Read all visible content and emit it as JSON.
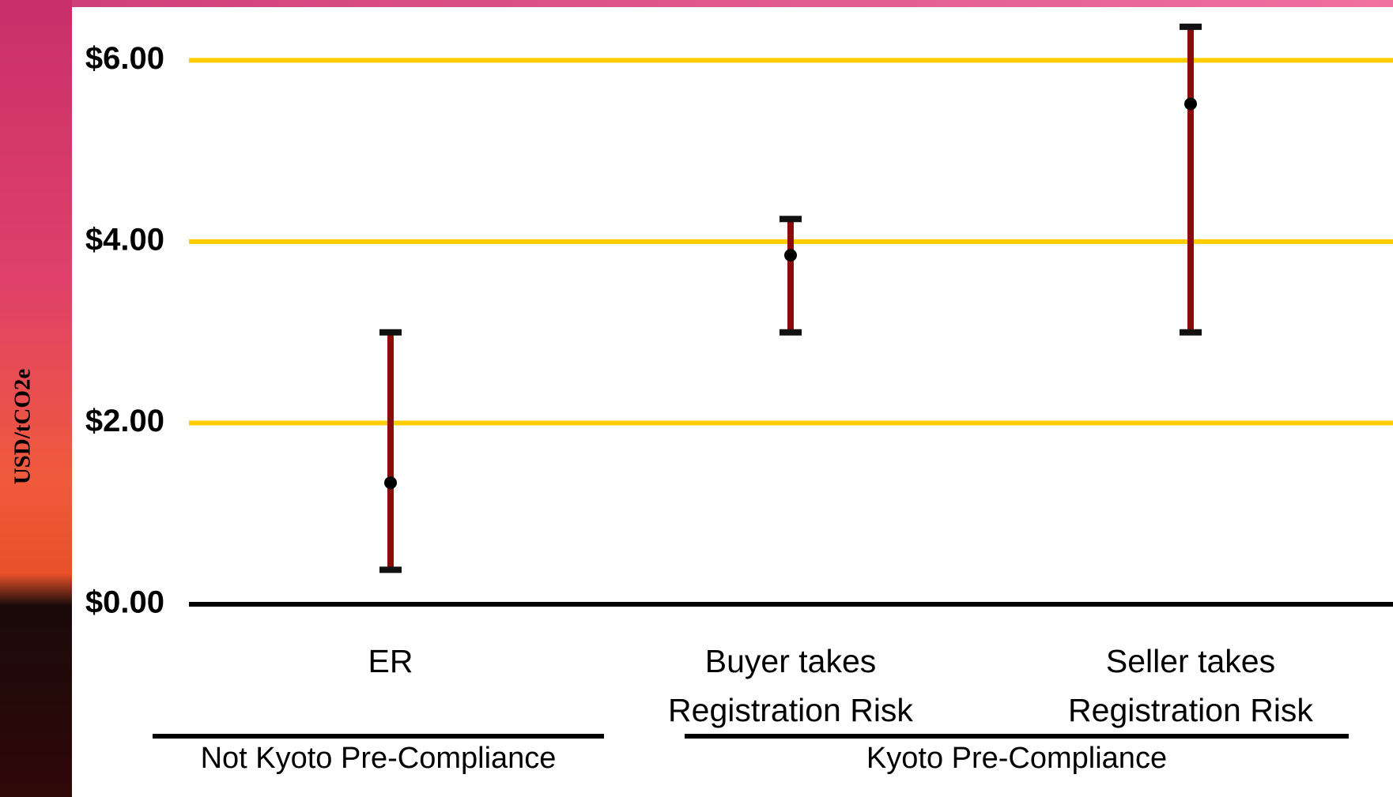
{
  "chart_data": {
    "type": "range",
    "y_label": "USD/tCO2e",
    "categories": [
      [
        "ER"
      ],
      [
        "Buyer takes",
        "Registration Risk"
      ],
      [
        "Seller takes",
        "Registration Risk"
      ]
    ],
    "groups": [
      {
        "label": "Not Kyoto Pre-Compliance",
        "categories": [
          0
        ]
      },
      {
        "label": "Kyoto Pre-Compliance",
        "categories": [
          1,
          2
        ]
      }
    ],
    "series": [
      {
        "values": [
          1.34,
          3.85,
          5.52
        ],
        "low": [
          0.38,
          3.0,
          3.0
        ],
        "high": [
          3.0,
          4.25,
          6.37
        ],
        "color": "#8b0a0a",
        "cap_color": "#111111",
        "point_color": "#000000"
      }
    ],
    "ylim": [
      0,
      6.5
    ],
    "yticks": [
      {
        "value": 0,
        "label": "$0.00"
      },
      {
        "value": 2,
        "label": "$2.00"
      },
      {
        "value": 4,
        "label": "$4.00"
      },
      {
        "value": 6,
        "label": "$6.00"
      }
    ],
    "grid": true,
    "grid_color": "#ffcc00",
    "axis_color": "#000000"
  }
}
